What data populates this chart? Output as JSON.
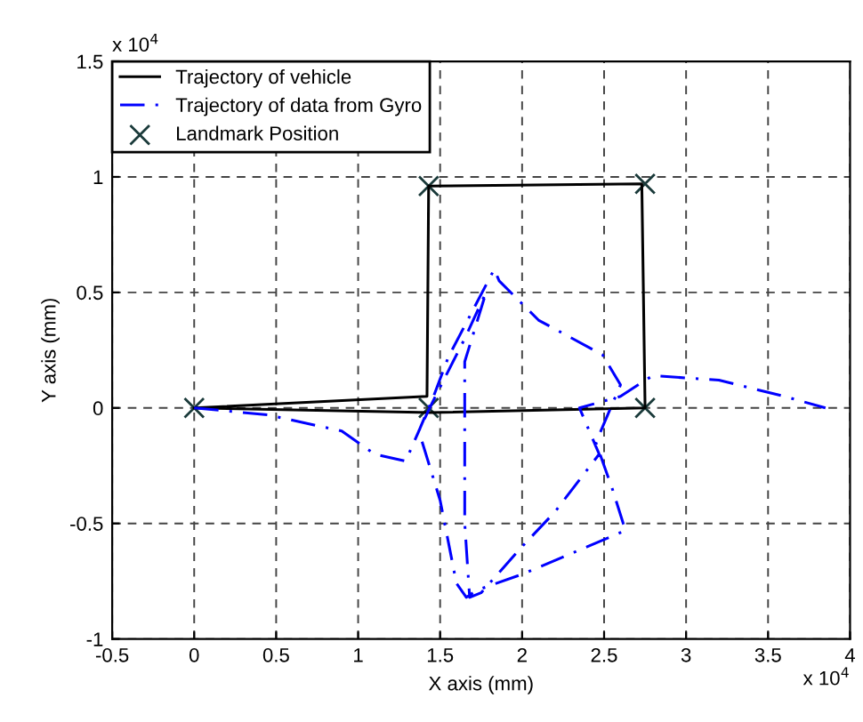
{
  "chart_data": {
    "type": "line",
    "xlabel": "X axis (mm)",
    "ylabel": "Y axis (mm)",
    "annotations": [
      "x 10$^{4}$",
      "x 10$^{4}$"
    ],
    "series": [
      {
        "name": "Trajectory of vehicle",
        "color": "#000000",
        "line_style": "solid",
        "x": [
          0,
          1.42,
          1.43,
          2.73,
          2.75,
          1.44,
          0.02
        ],
        "values": [
          0,
          0.05,
          0.96,
          0.97,
          0,
          -0.02,
          0
        ]
      },
      {
        "name": "Trajectory of data from Gyro",
        "color": "#0000ff",
        "line_style": "dashed",
        "x": [
          0,
          0.45,
          0.9,
          1.1,
          1.29,
          1.37,
          1.46,
          1.55,
          1.83,
          1.86,
          2.1,
          2.49,
          2.6,
          2.45,
          2.55,
          2.63,
          2.4,
          2.0,
          1.72,
          1.66,
          1.6,
          1.5,
          1.37,
          1.45,
          1.65,
          1.78,
          1.65,
          1.65,
          1.65,
          1.68,
          1.75,
          2.0,
          2.2,
          2.47,
          2.35,
          2.6,
          2.75,
          2.8,
          3.2,
          3.6,
          3.85
        ],
        "values": [
          0,
          -0.03,
          -0.1,
          -0.2,
          -0.23,
          -0.1,
          0.05,
          0.22,
          0.6,
          0.55,
          0.38,
          0.23,
          0.1,
          -0.15,
          -0.35,
          -0.53,
          -0.6,
          -0.72,
          -0.79,
          -0.82,
          -0.76,
          -0.4,
          -0.1,
          0.02,
          0.3,
          0.5,
          0.2,
          -0.2,
          -0.5,
          -0.82,
          -0.8,
          -0.6,
          -0.45,
          -0.2,
          0.0,
          0.05,
          0.12,
          0.14,
          0.12,
          0.05,
          0.0
        ]
      },
      {
        "name": "Landmark Position",
        "color": "#1a3a3a",
        "type": "scatter",
        "marker": "cross",
        "x": [
          0,
          1.43,
          1.43,
          2.75,
          2.75
        ],
        "values": [
          0,
          0,
          0.96,
          0.97,
          0
        ]
      }
    ],
    "xlim": [
      -0.5,
      4
    ],
    "xticks": [
      -0.5,
      0,
      0.5,
      1,
      1.5,
      2,
      2.5,
      3,
      3.5,
      4
    ],
    "ylim": [
      -1,
      1.5
    ],
    "yticks": [
      -1,
      -0.5,
      0,
      0.5,
      1,
      1.5
    ],
    "grid": true,
    "legend": "top left"
  }
}
